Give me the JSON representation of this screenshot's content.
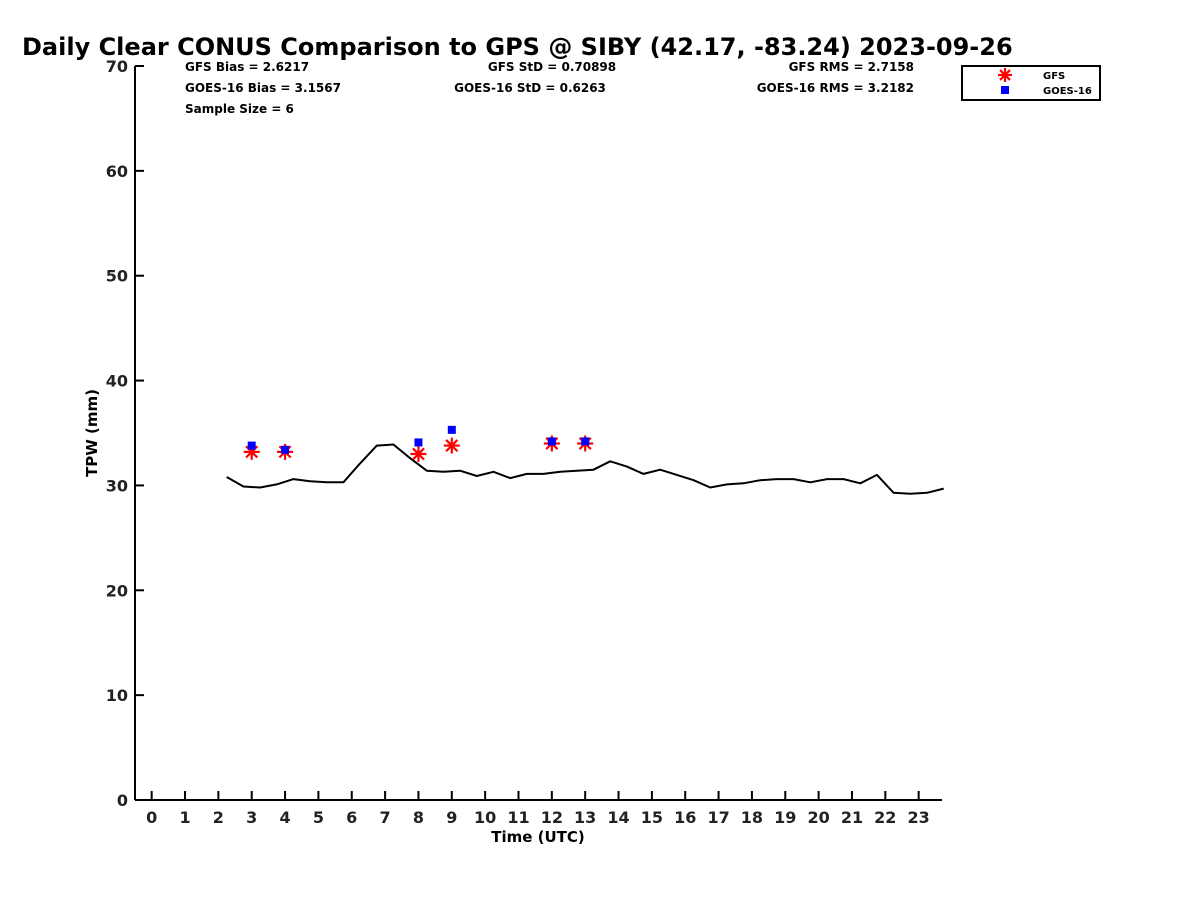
{
  "chart_data": {
    "type": "scatter",
    "title": "Daily Clear CONUS Comparison to GPS @ SIBY (42.17, -83.24) 2023-09-26",
    "xlabel": "Time (UTC)",
    "ylabel": "TPW (mm)",
    "xlim": [
      -0.5,
      23.7
    ],
    "ylim": [
      0,
      70
    ],
    "xticks": [
      0,
      1,
      2,
      3,
      4,
      5,
      6,
      7,
      8,
      9,
      10,
      11,
      12,
      13,
      14,
      15,
      16,
      17,
      18,
      19,
      20,
      21,
      22,
      23
    ],
    "yticks": [
      0,
      10,
      20,
      30,
      40,
      50,
      60,
      70
    ],
    "grid": false,
    "legend": {
      "position": "top-right",
      "entries": [
        "GFS",
        "GOES-16"
      ]
    },
    "stats": [
      "GFS Bias = 2.6217",
      "GFS StD = 0.70898",
      "GFS RMS = 2.7158",
      "GOES-16 Bias = 3.1567",
      "GOES-16 StD = 0.6263",
      "GOES-16 RMS = 3.2182",
      "Sample Size = 6"
    ],
    "series": [
      {
        "name": "",
        "type": "line",
        "color": "#000000",
        "x": [
          2.25,
          2.75,
          3.25,
          3.75,
          4.25,
          4.75,
          5.25,
          5.75,
          6.25,
          6.75,
          7.25,
          7.75,
          8.25,
          8.75,
          9.25,
          9.75,
          10.25,
          10.75,
          11.25,
          11.75,
          12.25,
          12.75,
          13.25,
          13.75,
          14.25,
          14.75,
          15.25,
          15.75,
          16.25,
          16.75,
          17.25,
          17.75,
          18.25,
          18.75,
          19.25,
          19.75,
          20.25,
          20.75,
          21.25,
          21.75,
          22.25,
          22.75,
          23.25,
          23.75
        ],
        "y": [
          30.8,
          29.9,
          29.8,
          30.1,
          30.6,
          30.4,
          30.3,
          30.3,
          32.1,
          33.8,
          33.9,
          32.6,
          31.4,
          31.3,
          31.4,
          30.9,
          31.3,
          30.7,
          31.1,
          31.1,
          31.3,
          31.4,
          31.5,
          32.3,
          31.8,
          31.1,
          31.5,
          31.0,
          30.5,
          29.8,
          30.1,
          30.2,
          30.5,
          30.6,
          30.6,
          30.3,
          30.6,
          30.6,
          30.2,
          31.0,
          29.3,
          29.2,
          29.3,
          29.7
        ]
      },
      {
        "name": "GFS",
        "type": "scatter",
        "marker": "asterisk",
        "color": "#ff0000",
        "x": [
          3.0,
          4.0,
          8.0,
          9.0,
          12.0,
          13.0
        ],
        "y": [
          33.2,
          33.2,
          33.0,
          33.8,
          34.0,
          34.0
        ]
      },
      {
        "name": "GOES-16",
        "type": "scatter",
        "marker": "square",
        "color": "#0000ff",
        "x": [
          3.0,
          4.0,
          8.0,
          9.0,
          12.0,
          13.0
        ],
        "y": [
          33.8,
          33.4,
          34.1,
          35.3,
          34.2,
          34.2
        ]
      }
    ]
  }
}
